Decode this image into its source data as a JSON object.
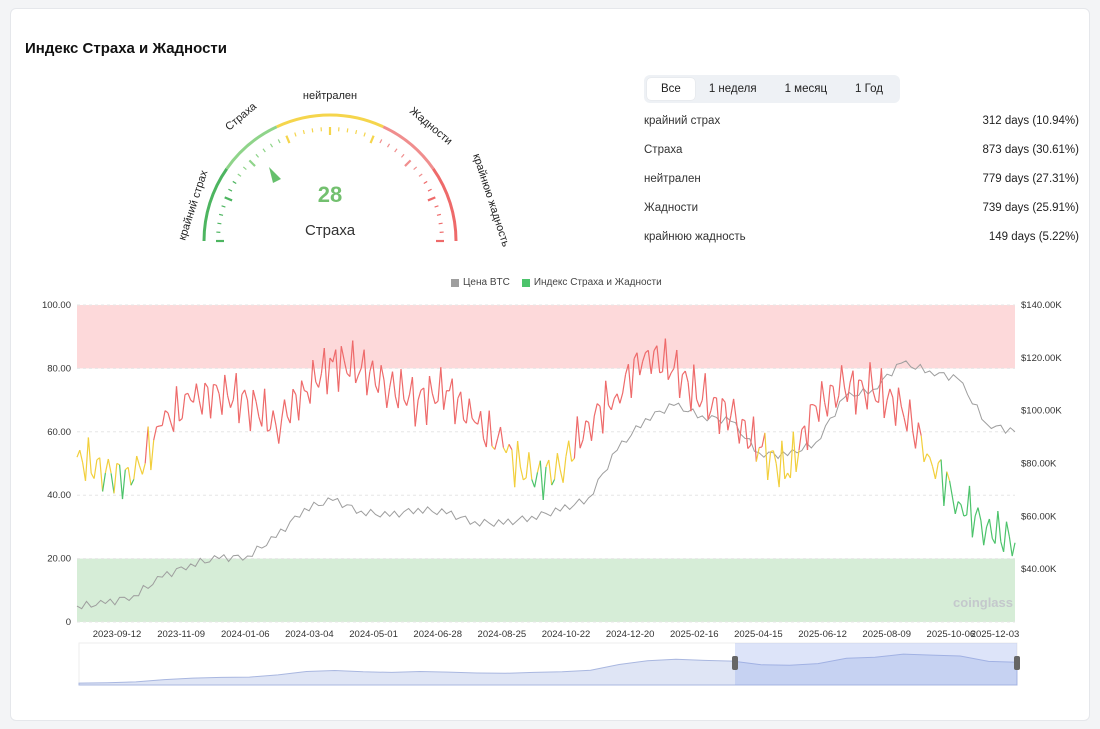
{
  "page": {
    "title": "Индекс Страха и Жадности"
  },
  "gauge": {
    "value": "28",
    "state": "Страха",
    "labels": [
      "крайний страх",
      "Страха",
      "нейтрален",
      "Жадности",
      "крайнюю жадность"
    ],
    "colors": {
      "extreme_fear": "#4db560",
      "fear": "#8fd48a",
      "neutral": "#f5d54c",
      "greed": "#f08e8e",
      "extreme_greed": "#ee6a6a"
    }
  },
  "tabs": [
    {
      "label": "Все",
      "active": true
    },
    {
      "label": "1 неделя",
      "active": false
    },
    {
      "label": "1 месяц",
      "active": false
    },
    {
      "label": "1 Год",
      "active": false
    }
  ],
  "stats": [
    {
      "label": "крайний страх",
      "value": "312 days (10.94%)"
    },
    {
      "label": "Страха",
      "value": "873 days (30.61%)"
    },
    {
      "label": "нейтрален",
      "value": "779 days (27.31%)"
    },
    {
      "label": "Жадности",
      "value": "739 days (25.91%)"
    },
    {
      "label": "крайнюю жадность",
      "value": "149 days (5.22%)"
    }
  ],
  "watermark": "coinglass",
  "chart_data": {
    "type": "line",
    "legend": [
      {
        "name": "Цена BTC",
        "color": "#9e9e9e"
      },
      {
        "name": "Индекс Страха и Жадности",
        "color": "#4cc36b"
      }
    ],
    "legend_position": "top-center",
    "grid": true,
    "x_labels": [
      "2023-09-12",
      "2023-11-09",
      "2024-01-06",
      "2024-03-04",
      "2024-05-01",
      "2024-06-28",
      "2024-08-25",
      "2024-10-22",
      "2024-12-20",
      "2025-02-16",
      "2025-04-15",
      "2025-06-12",
      "2025-08-09",
      "2025-10-06",
      "2025-12-03"
    ],
    "y_left_labels": [
      "100.00",
      "80.00",
      "60.00",
      "40.00",
      "20.00",
      "0"
    ],
    "y_left_range": [
      0,
      100
    ],
    "y_right_labels": [
      "$140.00K",
      "$120.00K",
      "$100.00K",
      "$80.00K",
      "$60.00K",
      "$40.00K"
    ],
    "y_right_range": [
      20000,
      140000
    ],
    "zones": [
      {
        "from": 80,
        "to": 100,
        "color": "#fdd9da"
      },
      {
        "from": 0,
        "to": 20,
        "color": "#d6edd7"
      }
    ],
    "series": [
      {
        "name": "Индекс Страха и Жадности",
        "axis": "left",
        "x": [
          0,
          25,
          50,
          75,
          100,
          125,
          150,
          175,
          200,
          225,
          250,
          275,
          300,
          325,
          350,
          375,
          400,
          425,
          450,
          475,
          500,
          525,
          550,
          575,
          600,
          625,
          650,
          675,
          700,
          725,
          750,
          775,
          800,
          825
        ],
        "values": [
          52,
          47,
          45,
          62,
          70,
          72,
          70,
          62,
          73,
          82,
          80,
          74,
          70,
          73,
          63,
          55,
          45,
          48,
          63,
          72,
          85,
          80,
          70,
          65,
          55,
          47,
          68,
          74,
          73,
          68,
          52,
          38,
          30,
          25
        ]
      },
      {
        "name": "Цена BTC",
        "axis": "right",
        "x": [
          0,
          25,
          50,
          75,
          100,
          125,
          150,
          175,
          200,
          225,
          250,
          275,
          300,
          325,
          350,
          375,
          400,
          425,
          450,
          475,
          500,
          525,
          550,
          575,
          600,
          625,
          650,
          675,
          700,
          725,
          750,
          775,
          800,
          825
        ],
        "values": [
          26000,
          27000,
          30000,
          37000,
          42000,
          44000,
          45000,
          52000,
          63000,
          66000,
          62000,
          60000,
          63000,
          61000,
          58000,
          57000,
          60000,
          62000,
          67000,
          85000,
          97000,
          102000,
          98000,
          96000,
          84000,
          83000,
          88000,
          105000,
          108000,
          118000,
          115000,
          112000,
          95000,
          92000
        ]
      }
    ]
  }
}
